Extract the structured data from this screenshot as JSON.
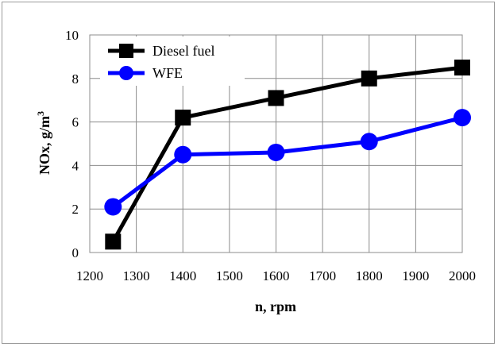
{
  "chart_data": {
    "type": "line",
    "xlabel": "n, rpm",
    "ylabel_main": "NOx, g/m",
    "ylabel_sup": "3",
    "xlim": [
      1200,
      2000
    ],
    "ylim": [
      0,
      10
    ],
    "xticks": [
      1200,
      1300,
      1400,
      1500,
      1600,
      1700,
      1800,
      1900,
      2000
    ],
    "yticks": [
      0,
      2,
      4,
      6,
      8,
      10
    ],
    "grid": true,
    "legend_position": "top-left",
    "series": [
      {
        "name": "Diesel fuel",
        "color": "#000000",
        "marker": "square",
        "x": [
          1250,
          1400,
          1600,
          1800,
          2000
        ],
        "y": [
          0.5,
          6.2,
          7.1,
          8.0,
          8.5
        ]
      },
      {
        "name": "WFE",
        "color": "#0000ff",
        "marker": "circle",
        "x": [
          1250,
          1400,
          1600,
          1800,
          2000
        ],
        "y": [
          2.1,
          4.5,
          4.6,
          5.1,
          6.2
        ]
      }
    ]
  }
}
